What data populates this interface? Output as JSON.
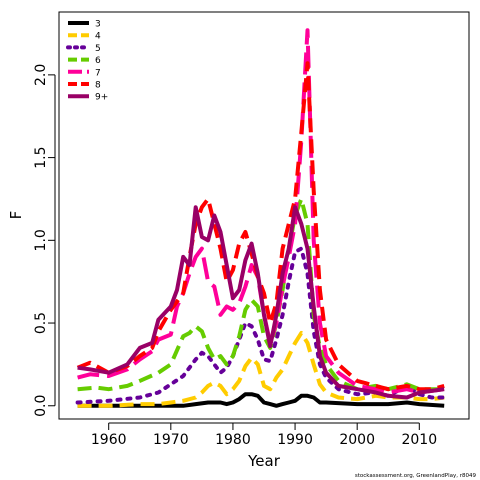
{
  "chart_data": {
    "type": "line",
    "xlabel": "Year",
    "ylabel": "F",
    "xlim": [
      1952,
      2018
    ],
    "ylim": [
      -0.08,
      2.38
    ],
    "xticks": [
      1960,
      1970,
      1980,
      1990,
      2000,
      2010
    ],
    "yticks": [
      0.0,
      0.5,
      1.0,
      1.5,
      2.0
    ],
    "ytick_labels": [
      "0.0",
      "0.5",
      "1.0",
      "1.5",
      "2.0"
    ],
    "legend_position": "top-left",
    "footnote": "stockassessment.org, GreenlandPlay, r8049",
    "series": [
      {
        "name": "3",
        "color": "#000000",
        "dash": "solid",
        "points": [
          [
            1955,
            0.0
          ],
          [
            1960,
            0.0
          ],
          [
            1965,
            0.0
          ],
          [
            1970,
            0.0
          ],
          [
            1972,
            0.0
          ],
          [
            1974,
            0.01
          ],
          [
            1976,
            0.02
          ],
          [
            1978,
            0.02
          ],
          [
            1979,
            0.01
          ],
          [
            1980,
            0.02
          ],
          [
            1981,
            0.04
          ],
          [
            1982,
            0.07
          ],
          [
            1983,
            0.07
          ],
          [
            1984,
            0.06
          ],
          [
            1985,
            0.02
          ],
          [
            1986,
            0.01
          ],
          [
            1987,
            0.0
          ],
          [
            1988,
            0.01
          ],
          [
            1989,
            0.02
          ],
          [
            1990,
            0.03
          ],
          [
            1991,
            0.06
          ],
          [
            1992,
            0.06
          ],
          [
            1993,
            0.05
          ],
          [
            1994,
            0.02
          ],
          [
            1995,
            0.02
          ],
          [
            2000,
            0.01
          ],
          [
            2005,
            0.01
          ],
          [
            2008,
            0.02
          ],
          [
            2010,
            0.01
          ],
          [
            2014,
            0.0
          ]
        ]
      },
      {
        "name": "4",
        "color": "#ffcc00",
        "dash": "dashed",
        "points": [
          [
            1955,
            0.0
          ],
          [
            1960,
            0.0
          ],
          [
            1965,
            0.01
          ],
          [
            1968,
            0.01
          ],
          [
            1970,
            0.02
          ],
          [
            1972,
            0.03
          ],
          [
            1974,
            0.05
          ],
          [
            1975,
            0.08
          ],
          [
            1976,
            0.12
          ],
          [
            1977,
            0.14
          ],
          [
            1978,
            0.12
          ],
          [
            1979,
            0.07
          ],
          [
            1980,
            0.1
          ],
          [
            1981,
            0.15
          ],
          [
            1982,
            0.24
          ],
          [
            1983,
            0.29
          ],
          [
            1984,
            0.25
          ],
          [
            1985,
            0.12
          ],
          [
            1986,
            0.1
          ],
          [
            1987,
            0.17
          ],
          [
            1988,
            0.22
          ],
          [
            1989,
            0.3
          ],
          [
            1990,
            0.38
          ],
          [
            1991,
            0.44
          ],
          [
            1992,
            0.38
          ],
          [
            1993,
            0.25
          ],
          [
            1994,
            0.13
          ],
          [
            1995,
            0.08
          ],
          [
            1997,
            0.05
          ],
          [
            2000,
            0.04
          ],
          [
            2003,
            0.06
          ],
          [
            2005,
            0.05
          ],
          [
            2008,
            0.05
          ],
          [
            2010,
            0.04
          ],
          [
            2012,
            0.04
          ],
          [
            2014,
            0.05
          ]
        ]
      },
      {
        "name": "5",
        "color": "#660099",
        "dash": "dotted",
        "points": [
          [
            1955,
            0.02
          ],
          [
            1960,
            0.03
          ],
          [
            1965,
            0.05
          ],
          [
            1968,
            0.08
          ],
          [
            1970,
            0.13
          ],
          [
            1972,
            0.18
          ],
          [
            1974,
            0.28
          ],
          [
            1975,
            0.32
          ],
          [
            1976,
            0.3
          ],
          [
            1977,
            0.25
          ],
          [
            1978,
            0.2
          ],
          [
            1979,
            0.23
          ],
          [
            1980,
            0.3
          ],
          [
            1981,
            0.4
          ],
          [
            1982,
            0.5
          ],
          [
            1983,
            0.48
          ],
          [
            1984,
            0.4
          ],
          [
            1985,
            0.28
          ],
          [
            1986,
            0.27
          ],
          [
            1987,
            0.4
          ],
          [
            1988,
            0.55
          ],
          [
            1989,
            0.75
          ],
          [
            1990,
            0.93
          ],
          [
            1991,
            0.95
          ],
          [
            1992,
            0.8
          ],
          [
            1993,
            0.45
          ],
          [
            1994,
            0.25
          ],
          [
            1995,
            0.17
          ],
          [
            1997,
            0.1
          ],
          [
            2000,
            0.07
          ],
          [
            2003,
            0.08
          ],
          [
            2005,
            0.06
          ],
          [
            2008,
            0.12
          ],
          [
            2010,
            0.07
          ],
          [
            2012,
            0.05
          ],
          [
            2014,
            0.05
          ]
        ]
      },
      {
        "name": "6",
        "color": "#66cc00",
        "dash": "dashed",
        "points": [
          [
            1955,
            0.1
          ],
          [
            1958,
            0.11
          ],
          [
            1960,
            0.1
          ],
          [
            1963,
            0.12
          ],
          [
            1965,
            0.15
          ],
          [
            1968,
            0.2
          ],
          [
            1970,
            0.25
          ],
          [
            1972,
            0.42
          ],
          [
            1973,
            0.44
          ],
          [
            1974,
            0.48
          ],
          [
            1975,
            0.45
          ],
          [
            1976,
            0.35
          ],
          [
            1977,
            0.28
          ],
          [
            1978,
            0.3
          ],
          [
            1979,
            0.25
          ],
          [
            1980,
            0.3
          ],
          [
            1981,
            0.42
          ],
          [
            1982,
            0.58
          ],
          [
            1983,
            0.64
          ],
          [
            1984,
            0.6
          ],
          [
            1985,
            0.42
          ],
          [
            1986,
            0.35
          ],
          [
            1987,
            0.5
          ],
          [
            1988,
            0.7
          ],
          [
            1989,
            0.95
          ],
          [
            1990,
            1.15
          ],
          [
            1991,
            1.25
          ],
          [
            1992,
            1.1
          ],
          [
            1993,
            0.55
          ],
          [
            1994,
            0.35
          ],
          [
            1995,
            0.25
          ],
          [
            1997,
            0.15
          ],
          [
            2000,
            0.1
          ],
          [
            2003,
            0.12
          ],
          [
            2005,
            0.1
          ],
          [
            2008,
            0.13
          ],
          [
            2010,
            0.1
          ],
          [
            2012,
            0.1
          ],
          [
            2014,
            0.1
          ]
        ]
      },
      {
        "name": "7",
        "color": "#ff0099",
        "dash": "longdash",
        "points": [
          [
            1955,
            0.17
          ],
          [
            1957,
            0.19
          ],
          [
            1960,
            0.18
          ],
          [
            1963,
            0.22
          ],
          [
            1965,
            0.28
          ],
          [
            1967,
            0.33
          ],
          [
            1968,
            0.4
          ],
          [
            1970,
            0.43
          ],
          [
            1971,
            0.6
          ],
          [
            1972,
            0.68
          ],
          [
            1973,
            0.8
          ],
          [
            1974,
            0.9
          ],
          [
            1975,
            0.95
          ],
          [
            1976,
            0.75
          ],
          [
            1977,
            0.72
          ],
          [
            1978,
            0.55
          ],
          [
            1979,
            0.6
          ],
          [
            1980,
            0.58
          ],
          [
            1981,
            0.62
          ],
          [
            1982,
            0.72
          ],
          [
            1983,
            0.85
          ],
          [
            1984,
            0.78
          ],
          [
            1985,
            0.55
          ],
          [
            1986,
            0.38
          ],
          [
            1987,
            0.5
          ],
          [
            1988,
            0.72
          ],
          [
            1989,
            0.9
          ],
          [
            1990,
            1.1
          ],
          [
            1991,
            1.6
          ],
          [
            1992,
            2.27
          ],
          [
            1993,
            1.0
          ],
          [
            1994,
            0.5
          ],
          [
            1995,
            0.3
          ],
          [
            1997,
            0.2
          ],
          [
            2000,
            0.12
          ],
          [
            2003,
            0.1
          ],
          [
            2005,
            0.08
          ],
          [
            2008,
            0.1
          ],
          [
            2010,
            0.08
          ],
          [
            2012,
            0.09
          ],
          [
            2014,
            0.1
          ]
        ]
      },
      {
        "name": "8",
        "color": "#ff0000",
        "dash": "dashed",
        "points": [
          [
            1955,
            0.23
          ],
          [
            1957,
            0.26
          ],
          [
            1960,
            0.2
          ],
          [
            1963,
            0.24
          ],
          [
            1965,
            0.3
          ],
          [
            1967,
            0.35
          ],
          [
            1968,
            0.45
          ],
          [
            1970,
            0.58
          ],
          [
            1971,
            0.63
          ],
          [
            1972,
            0.68
          ],
          [
            1973,
            0.9
          ],
          [
            1974,
            1.1
          ],
          [
            1975,
            1.2
          ],
          [
            1976,
            1.25
          ],
          [
            1977,
            1.1
          ],
          [
            1978,
            0.95
          ],
          [
            1979,
            0.75
          ],
          [
            1980,
            0.82
          ],
          [
            1981,
            0.98
          ],
          [
            1982,
            1.05
          ],
          [
            1983,
            0.92
          ],
          [
            1984,
            0.78
          ],
          [
            1985,
            0.68
          ],
          [
            1986,
            0.5
          ],
          [
            1987,
            0.62
          ],
          [
            1988,
            0.95
          ],
          [
            1989,
            1.1
          ],
          [
            1990,
            1.25
          ],
          [
            1991,
            1.65
          ],
          [
            1992,
            2.07
          ],
          [
            1993,
            1.3
          ],
          [
            1994,
            0.7
          ],
          [
            1995,
            0.4
          ],
          [
            1997,
            0.25
          ],
          [
            2000,
            0.15
          ],
          [
            2003,
            0.12
          ],
          [
            2005,
            0.1
          ],
          [
            2008,
            0.12
          ],
          [
            2010,
            0.1
          ],
          [
            2012,
            0.1
          ],
          [
            2014,
            0.12
          ]
        ]
      },
      {
        "name": "9+",
        "color": "#990066",
        "dash": "solid",
        "points": [
          [
            1955,
            0.23
          ],
          [
            1957,
            0.22
          ],
          [
            1960,
            0.2
          ],
          [
            1963,
            0.25
          ],
          [
            1965,
            0.35
          ],
          [
            1967,
            0.38
          ],
          [
            1968,
            0.52
          ],
          [
            1970,
            0.6
          ],
          [
            1971,
            0.7
          ],
          [
            1972,
            0.9
          ],
          [
            1973,
            0.85
          ],
          [
            1974,
            1.2
          ],
          [
            1975,
            1.02
          ],
          [
            1976,
            1.0
          ],
          [
            1977,
            1.15
          ],
          [
            1978,
            1.05
          ],
          [
            1979,
            0.85
          ],
          [
            1980,
            0.65
          ],
          [
            1981,
            0.7
          ],
          [
            1982,
            0.88
          ],
          [
            1983,
            0.98
          ],
          [
            1984,
            0.8
          ],
          [
            1985,
            0.55
          ],
          [
            1986,
            0.36
          ],
          [
            1987,
            0.55
          ],
          [
            1988,
            0.8
          ],
          [
            1989,
            0.95
          ],
          [
            1990,
            1.2
          ],
          [
            1991,
            1.1
          ],
          [
            1992,
            0.95
          ],
          [
            1993,
            0.6
          ],
          [
            1994,
            0.3
          ],
          [
            1995,
            0.2
          ],
          [
            1997,
            0.12
          ],
          [
            2000,
            0.1
          ],
          [
            2003,
            0.08
          ],
          [
            2005,
            0.06
          ],
          [
            2008,
            0.05
          ],
          [
            2010,
            0.08
          ],
          [
            2012,
            0.09
          ],
          [
            2014,
            0.1
          ]
        ]
      }
    ]
  }
}
